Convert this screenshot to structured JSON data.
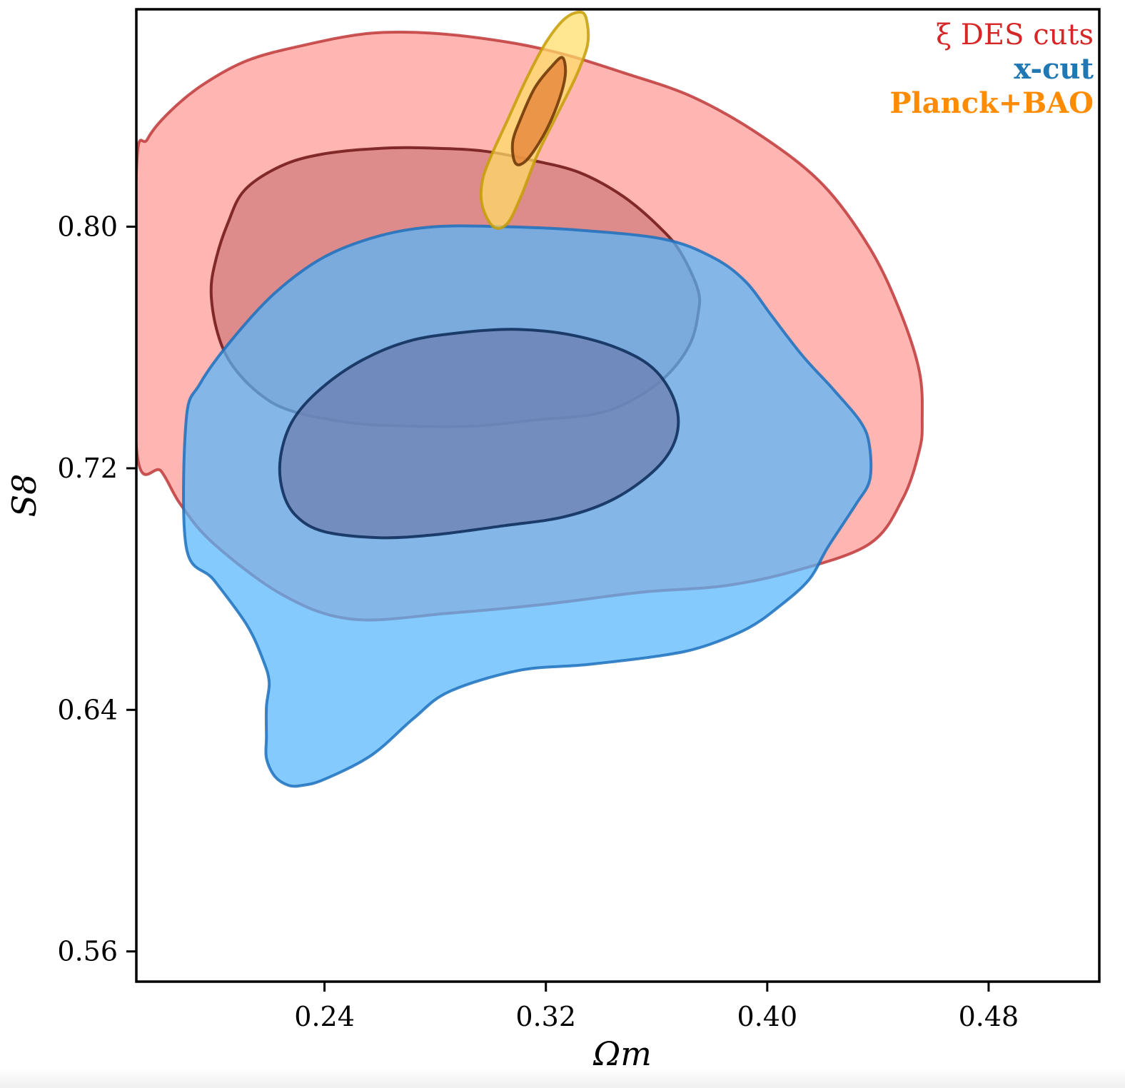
{
  "chart_data": {
    "type": "contour",
    "xlabel": "Ωm",
    "ylabel": "S8",
    "xlim": [
      0.172,
      0.52
    ],
    "ylim": [
      0.55,
      0.872
    ],
    "xticks": [
      0.24,
      0.32,
      0.4,
      0.48
    ],
    "xtick_labels": [
      "0.24",
      "0.32",
      "0.40",
      "0.48"
    ],
    "yticks": [
      0.56,
      0.64,
      0.72,
      0.8
    ],
    "ytick_labels": [
      "0.56",
      "0.64",
      "0.72",
      "0.80"
    ],
    "legend_placement": "top-right",
    "grid": false,
    "series": [
      {
        "name": "ξ DES cuts",
        "color": "#d62728",
        "fill_outer": "#ff9a96",
        "fill_inner": "#d38080",
        "line_outer": "#c03838",
        "line_inner": "#6e1414",
        "contours": [
          {
            "level": "95%",
            "points": [
              [
                0.172,
                0.818
              ],
              [
                0.176,
                0.829
              ],
              [
                0.184,
                0.838
              ],
              [
                0.196,
                0.847
              ],
              [
                0.212,
                0.855
              ],
              [
                0.232,
                0.86
              ],
              [
                0.256,
                0.864
              ],
              [
                0.28,
                0.864
              ],
              [
                0.307,
                0.861
              ],
              [
                0.327,
                0.857
              ],
              [
                0.348,
                0.851
              ],
              [
                0.373,
                0.843
              ],
              [
                0.398,
                0.83
              ],
              [
                0.42,
                0.814
              ],
              [
                0.437,
                0.793
              ],
              [
                0.448,
                0.772
              ],
              [
                0.455,
                0.752
              ],
              [
                0.456,
                0.736
              ],
              [
                0.455,
                0.726
              ],
              [
                0.449,
                0.71
              ],
              [
                0.437,
                0.695
              ],
              [
                0.41,
                0.686
              ],
              [
                0.384,
                0.681
              ],
              [
                0.355,
                0.679
              ],
              [
                0.32,
                0.675
              ],
              [
                0.285,
                0.672
              ],
              [
                0.25,
                0.67
              ],
              [
                0.225,
                0.678
              ],
              [
                0.2,
                0.695
              ],
              [
                0.188,
                0.708
              ],
              [
                0.181,
                0.719
              ],
              [
                0.172,
                0.727
              ]
            ]
          },
          {
            "level": "68%",
            "points": [
              [
                0.199,
                0.779
              ],
              [
                0.201,
                0.79
              ],
              [
                0.205,
                0.801
              ],
              [
                0.211,
                0.812
              ],
              [
                0.224,
                0.82
              ],
              [
                0.239,
                0.824
              ],
              [
                0.261,
                0.826
              ],
              [
                0.28,
                0.826
              ],
              [
                0.298,
                0.825
              ],
              [
                0.315,
                0.822
              ],
              [
                0.332,
                0.818
              ],
              [
                0.348,
                0.81
              ],
              [
                0.362,
                0.799
              ],
              [
                0.369,
                0.791
              ],
              [
                0.375,
                0.779
              ],
              [
                0.375,
                0.771
              ],
              [
                0.372,
                0.761
              ],
              [
                0.364,
                0.751
              ],
              [
                0.352,
                0.743
              ],
              [
                0.338,
                0.738
              ],
              [
                0.316,
                0.736
              ],
              [
                0.295,
                0.734
              ],
              [
                0.27,
                0.734
              ],
              [
                0.25,
                0.735
              ],
              [
                0.228,
                0.739
              ],
              [
                0.216,
                0.745
              ],
              [
                0.206,
                0.755
              ],
              [
                0.201,
                0.766
              ]
            ]
          }
        ]
      },
      {
        "name": "x-cut",
        "color": "#1f77b4",
        "fill_outer": "#55b5fc",
        "fill_inner": "#6e82b3",
        "line_outer": "#1c71bd",
        "line_inner": "#0a2a58",
        "contours": [
          {
            "level": "95%",
            "points": [
              [
                0.19,
                0.736
              ],
              [
                0.195,
                0.748
              ],
              [
                0.206,
                0.762
              ],
              [
                0.222,
                0.778
              ],
              [
                0.24,
                0.79
              ],
              [
                0.26,
                0.797
              ],
              [
                0.28,
                0.8
              ],
              [
                0.305,
                0.8
              ],
              [
                0.33,
                0.799
              ],
              [
                0.362,
                0.796
              ],
              [
                0.38,
                0.79
              ],
              [
                0.392,
                0.782
              ],
              [
                0.402,
                0.77
              ],
              [
                0.413,
                0.757
              ],
              [
                0.424,
                0.746
              ],
              [
                0.434,
                0.735
              ],
              [
                0.437,
                0.727
              ],
              [
                0.437,
                0.716
              ],
              [
                0.432,
                0.708
              ],
              [
                0.422,
                0.694
              ],
              [
                0.415,
                0.683
              ],
              [
                0.404,
                0.674
              ],
              [
                0.393,
                0.667
              ],
              [
                0.377,
                0.661
              ],
              [
                0.362,
                0.658
              ],
              [
                0.335,
                0.655
              ],
              [
                0.31,
                0.653
              ],
              [
                0.285,
                0.646
              ],
              [
                0.272,
                0.637
              ],
              [
                0.257,
                0.625
              ],
              [
                0.24,
                0.617
              ],
              [
                0.232,
                0.615
              ],
              [
                0.227,
                0.615
              ],
              [
                0.222,
                0.618
              ],
              [
                0.219,
                0.624
              ],
              [
                0.219,
                0.631
              ],
              [
                0.219,
                0.641
              ],
              [
                0.22,
                0.649
              ],
              [
                0.218,
                0.656
              ],
              [
                0.212,
                0.668
              ],
              [
                0.2,
                0.683
              ],
              [
                0.19,
                0.694
              ]
            ]
          },
          {
            "level": "68%",
            "points": [
              [
                0.225,
                0.712
              ],
              [
                0.23,
                0.704
              ],
              [
                0.24,
                0.699
              ],
              [
                0.26,
                0.697
              ],
              [
                0.28,
                0.698
              ],
              [
                0.305,
                0.701
              ],
              [
                0.327,
                0.704
              ],
              [
                0.345,
                0.71
              ],
              [
                0.36,
                0.72
              ],
              [
                0.367,
                0.73
              ],
              [
                0.367,
                0.741
              ],
              [
                0.36,
                0.752
              ],
              [
                0.348,
                0.759
              ],
              [
                0.33,
                0.764
              ],
              [
                0.31,
                0.766
              ],
              [
                0.29,
                0.765
              ],
              [
                0.27,
                0.762
              ],
              [
                0.252,
                0.755
              ],
              [
                0.237,
                0.745
              ],
              [
                0.228,
                0.735
              ],
              [
                0.224,
                0.723
              ]
            ]
          }
        ]
      },
      {
        "name": "Planck+BAO",
        "color": "#ff8c00",
        "fill_outer": "#ffdc66",
        "fill_inner": "#e6843a",
        "line_outer": "#c69d06",
        "line_inner": "#6a3404",
        "contours": [
          {
            "level": "95%",
            "points": [
              [
                0.301,
                0.8
              ],
              [
                0.297,
                0.807
              ],
              [
                0.297,
                0.815
              ],
              [
                0.3,
                0.823
              ],
              [
                0.306,
                0.835
              ],
              [
                0.313,
                0.849
              ],
              [
                0.32,
                0.861
              ],
              [
                0.327,
                0.869
              ],
              [
                0.333,
                0.871
              ],
              [
                0.335,
                0.867
              ],
              [
                0.335,
                0.86
              ],
              [
                0.331,
                0.85
              ],
              [
                0.324,
                0.837
              ],
              [
                0.317,
                0.824
              ],
              [
                0.311,
                0.81
              ],
              [
                0.306,
                0.801
              ]
            ]
          },
          {
            "level": "68%",
            "points": [
              [
                0.309,
                0.821
              ],
              [
                0.308,
                0.828
              ],
              [
                0.311,
                0.836
              ],
              [
                0.316,
                0.846
              ],
              [
                0.322,
                0.853
              ],
              [
                0.326,
                0.856
              ],
              [
                0.327,
                0.85
              ],
              [
                0.324,
                0.84
              ],
              [
                0.319,
                0.83
              ],
              [
                0.313,
                0.822
              ]
            ]
          }
        ]
      }
    ]
  },
  "legend": [
    {
      "label": "ξ DES cuts",
      "color": "#d62728"
    },
    {
      "label": "x-cut",
      "color": "#1f77b4"
    },
    {
      "label": "Planck+BAO",
      "color": "#ff8c00"
    }
  ]
}
